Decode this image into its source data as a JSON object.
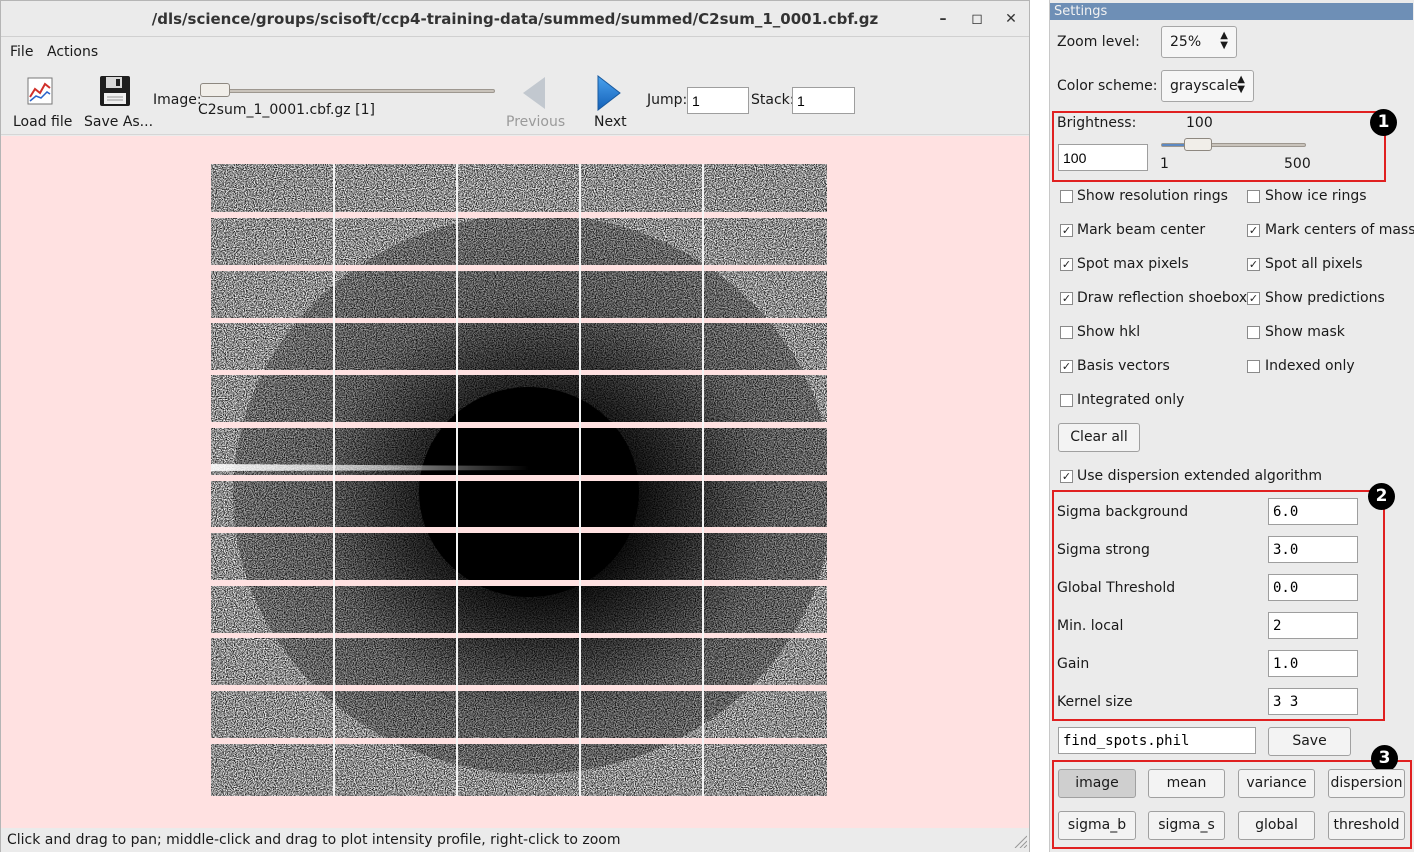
{
  "window": {
    "title": "/dls/science/groups/scisoft/ccp4-training-data/summed/summed/C2sum_1_0001.cbf.gz",
    "controls": {
      "minimize": "–",
      "maximize": "◻",
      "close": "✕"
    }
  },
  "menu": {
    "file": "File",
    "actions": "Actions"
  },
  "toolbar": {
    "load_file": "Load file",
    "save_as": "Save As...",
    "image_label": "Image:",
    "image_name": "C2sum_1_0001.cbf.gz [1]",
    "previous": "Previous",
    "next": "Next",
    "jump_label": "Jump:",
    "jump_value": "1",
    "stack_label": "Stack:",
    "stack_value": "1",
    "image_slider_fraction": 0.0
  },
  "status": {
    "text": "Click and drag to pan; middle-click and drag to plot intensity profile, right-click to zoom"
  },
  "settings": {
    "header": "Settings",
    "zoom_label": "Zoom level:",
    "zoom_value": "25%",
    "color_label": "Color scheme:",
    "color_value": "grayscale",
    "brightness": {
      "label": "Brightness:",
      "value": "100",
      "input": "100",
      "min": "1",
      "max": "500",
      "slider_value": 100
    },
    "markers": {
      "m1": "1",
      "m2": "2",
      "m3": "3"
    },
    "checkboxes": {
      "resolution_rings": {
        "label": "Show resolution rings",
        "checked": false
      },
      "ice_rings": {
        "label": "Show ice rings",
        "checked": false
      },
      "beam_center": {
        "label": "Mark beam center",
        "checked": true
      },
      "centers_of_mass": {
        "label": "Mark centers of mass",
        "checked": true
      },
      "spot_max": {
        "label": "Spot max pixels",
        "checked": true
      },
      "spot_all": {
        "label": "Spot all pixels",
        "checked": true
      },
      "shoebox": {
        "label": "Draw reflection shoebox",
        "checked": true
      },
      "predictions": {
        "label": "Show predictions",
        "checked": true
      },
      "hkl": {
        "label": "Show hkl",
        "checked": false
      },
      "mask": {
        "label": "Show mask",
        "checked": false
      },
      "basis": {
        "label": "Basis vectors",
        "checked": true
      },
      "indexed": {
        "label": "Indexed only",
        "checked": false
      },
      "integrated": {
        "label": "Integrated only",
        "checked": false
      },
      "dispersion_ext": {
        "label": "Use dispersion extended algorithm",
        "checked": true
      }
    },
    "clear_all": "Clear all",
    "params": {
      "sigma_background": {
        "label": "Sigma background",
        "value": "6.0"
      },
      "sigma_strong": {
        "label": "Sigma strong",
        "value": "3.0"
      },
      "global_threshold": {
        "label": "Global Threshold",
        "value": "0.0"
      },
      "min_local": {
        "label": "Min. local",
        "value": "2"
      },
      "gain": {
        "label": "Gain",
        "value": "1.0"
      },
      "kernel_size": {
        "label": "Kernel size",
        "value": "3 3"
      }
    },
    "phil_file": "find_spots.phil",
    "save": "Save",
    "modes": {
      "image": "image",
      "mean": "mean",
      "variance": "variance",
      "dispersion": "dispersion",
      "sigma_b": "sigma_b",
      "sigma_s": "sigma_s",
      "global": "global",
      "threshold": "threshold"
    },
    "selected_mode": "image"
  },
  "colors": {
    "canvas": "#ffe1e1",
    "highlight": "#e02020",
    "next_arrow": "#1f7fd6",
    "header": "#6e8fb6"
  }
}
